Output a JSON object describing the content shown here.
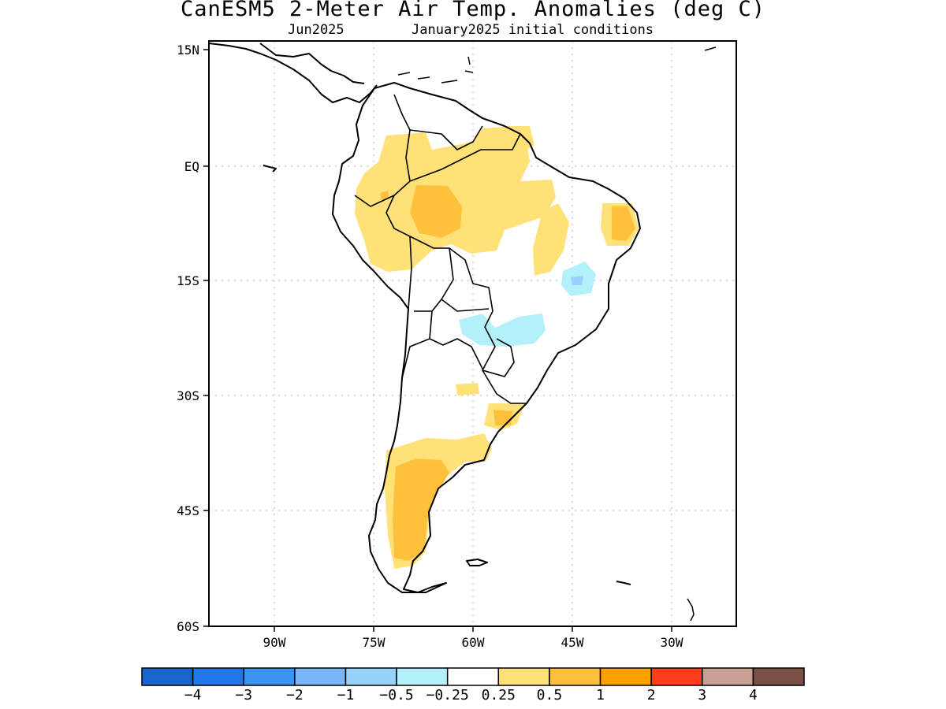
{
  "title": "CanESM5 2-Meter Air Temp. Anomalies (deg C)",
  "subtitle_month": "Jun2025",
  "subtitle_ic": "January2025 initial conditions",
  "map": {
    "type": "anomaly-map",
    "region": "South America",
    "lon_range": [
      -100,
      -20
    ],
    "lat_range": [
      -60,
      15
    ],
    "grid": true,
    "lat_ticks": [
      "15N",
      "EQ",
      "15S",
      "30S",
      "45S",
      "60S"
    ],
    "lon_ticks": [
      "90W",
      "75W",
      "60W",
      "45W",
      "30W"
    ]
  },
  "colorbar": {
    "labels": [
      "-4",
      "-3",
      "-2",
      "-1",
      "-0.5",
      "-0.25",
      "0.25",
      "0.5",
      "1",
      "2",
      "3",
      "4"
    ],
    "colors": [
      "#1a64cd",
      "#2176e8",
      "#3d94f0",
      "#78b6f8",
      "#96d2fa",
      "#b4f0fa",
      "#ffffff",
      "#ffe178",
      "#ffc03c",
      "#ffa000",
      "#ff3c1e",
      "#c8a096",
      "#785046"
    ]
  }
}
